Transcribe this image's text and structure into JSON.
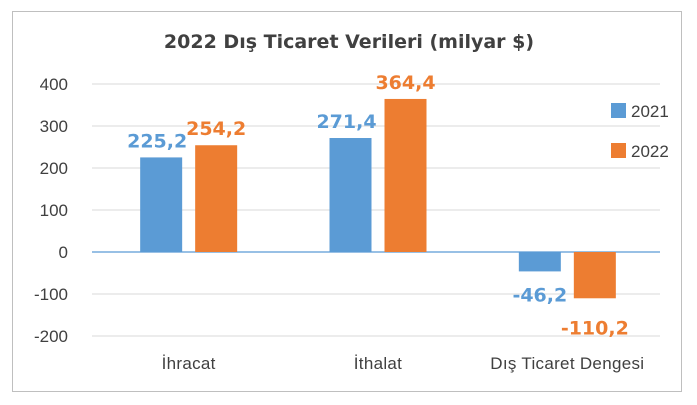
{
  "chart_data": {
    "type": "bar",
    "title": "2022 Dış Ticaret Verileri (milyar $)",
    "categories": [
      "İhracat",
      "İthalat",
      "Dış Ticaret Dengesi"
    ],
    "series": [
      {
        "name": "2021",
        "values": [
          225.2,
          271.4,
          -46.2
        ],
        "labels": [
          "225,2",
          "271,4",
          "-46,2"
        ],
        "color": "#5b9bd5"
      },
      {
        "name": "2022",
        "values": [
          254.2,
          364.4,
          -110.2
        ],
        "labels": [
          "254,2",
          "364,4",
          "-110,2"
        ],
        "color": "#ed7d31"
      }
    ],
    "ylim": [
      -200,
      400
    ],
    "yticks": [
      400,
      300,
      200,
      100,
      0,
      -100,
      -200
    ],
    "grid": true,
    "legend": "right",
    "xlabel": "",
    "ylabel": ""
  }
}
